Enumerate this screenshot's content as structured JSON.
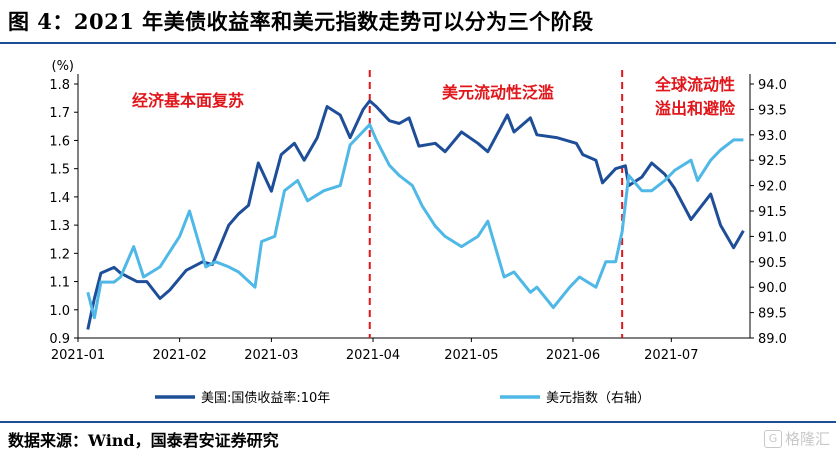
{
  "title": "图 4：2021 年美债收益率和美元指数走势可以分为三个阶段",
  "source": "数据来源：Wind，国泰君安证券研究",
  "watermark": "格隆汇",
  "watermark_icon": "G",
  "chart_data": {
    "type": "line",
    "xlabel": "",
    "y_unit": "(%)",
    "x_ticks": [
      "2021-01",
      "2021-02",
      "2021-03",
      "2021-04",
      "2021-05",
      "2021-06",
      "2021-07"
    ],
    "x_range": [
      "2021-01-01",
      "2021-07-25"
    ],
    "ylim_left": [
      0.9,
      1.8
    ],
    "ylim_right": [
      89.0,
      94.0
    ],
    "y_ticks_left": [
      "0.9",
      "1.0",
      "1.1",
      "1.2",
      "1.3",
      "1.4",
      "1.5",
      "1.6",
      "1.7",
      "1.8"
    ],
    "y_ticks_right": [
      "89.0",
      "89.5",
      "90.0",
      "90.5",
      "91.0",
      "91.5",
      "92.0",
      "92.5",
      "93.0",
      "93.5",
      "94.0"
    ],
    "grid": false,
    "legend_position": "bottom",
    "series": [
      {
        "name": "美国:国债收益率:10年",
        "axis": "left",
        "color": "#1f4e99",
        "points": [
          [
            "2021-01-04",
            0.93
          ],
          [
            "2021-01-06",
            1.04
          ],
          [
            "2021-01-08",
            1.13
          ],
          [
            "2021-01-12",
            1.15
          ],
          [
            "2021-01-14",
            1.13
          ],
          [
            "2021-01-19",
            1.1
          ],
          [
            "2021-01-22",
            1.1
          ],
          [
            "2021-01-26",
            1.04
          ],
          [
            "2021-01-29",
            1.07
          ],
          [
            "2021-02-03",
            1.14
          ],
          [
            "2021-02-08",
            1.17
          ],
          [
            "2021-02-11",
            1.16
          ],
          [
            "2021-02-16",
            1.3
          ],
          [
            "2021-02-19",
            1.34
          ],
          [
            "2021-02-22",
            1.37
          ],
          [
            "2021-02-25",
            1.52
          ],
          [
            "2021-03-01",
            1.42
          ],
          [
            "2021-03-04",
            1.55
          ],
          [
            "2021-03-08",
            1.59
          ],
          [
            "2021-03-11",
            1.53
          ],
          [
            "2021-03-15",
            1.61
          ],
          [
            "2021-03-18",
            1.72
          ],
          [
            "2021-03-22",
            1.69
          ],
          [
            "2021-03-25",
            1.61
          ],
          [
            "2021-03-29",
            1.71
          ],
          [
            "2021-03-31",
            1.74
          ],
          [
            "2021-04-02",
            1.72
          ],
          [
            "2021-04-06",
            1.67
          ],
          [
            "2021-04-09",
            1.66
          ],
          [
            "2021-04-12",
            1.68
          ],
          [
            "2021-04-15",
            1.58
          ],
          [
            "2021-04-20",
            1.59
          ],
          [
            "2021-04-23",
            1.56
          ],
          [
            "2021-04-28",
            1.63
          ],
          [
            "2021-05-03",
            1.59
          ],
          [
            "2021-05-06",
            1.56
          ],
          [
            "2021-05-12",
            1.69
          ],
          [
            "2021-05-14",
            1.63
          ],
          [
            "2021-05-19",
            1.68
          ],
          [
            "2021-05-21",
            1.62
          ],
          [
            "2021-05-27",
            1.61
          ],
          [
            "2021-06-02",
            1.59
          ],
          [
            "2021-06-04",
            1.55
          ],
          [
            "2021-06-08",
            1.53
          ],
          [
            "2021-06-10",
            1.45
          ],
          [
            "2021-06-14",
            1.5
          ],
          [
            "2021-06-17",
            1.51
          ],
          [
            "2021-06-18",
            1.44
          ],
          [
            "2021-06-22",
            1.47
          ],
          [
            "2021-06-25",
            1.52
          ],
          [
            "2021-06-29",
            1.48
          ],
          [
            "2021-07-02",
            1.43
          ],
          [
            "2021-07-07",
            1.32
          ],
          [
            "2021-07-13",
            1.41
          ],
          [
            "2021-07-16",
            1.3
          ],
          [
            "2021-07-20",
            1.22
          ],
          [
            "2021-07-23",
            1.28
          ]
        ]
      },
      {
        "name": "美元指数（右轴）",
        "axis": "right",
        "color": "#4fb8e6",
        "points": [
          [
            "2021-01-04",
            89.9
          ],
          [
            "2021-01-06",
            89.4
          ],
          [
            "2021-01-08",
            90.1
          ],
          [
            "2021-01-12",
            90.1
          ],
          [
            "2021-01-14",
            90.2
          ],
          [
            "2021-01-18",
            90.8
          ],
          [
            "2021-01-21",
            90.2
          ],
          [
            "2021-01-26",
            90.4
          ],
          [
            "2021-02-01",
            91.0
          ],
          [
            "2021-02-04",
            91.5
          ],
          [
            "2021-02-09",
            90.4
          ],
          [
            "2021-02-12",
            90.5
          ],
          [
            "2021-02-16",
            90.4
          ],
          [
            "2021-02-19",
            90.3
          ],
          [
            "2021-02-24",
            90.0
          ],
          [
            "2021-02-26",
            90.9
          ],
          [
            "2021-03-02",
            91.0
          ],
          [
            "2021-03-05",
            91.9
          ],
          [
            "2021-03-09",
            92.1
          ],
          [
            "2021-03-12",
            91.7
          ],
          [
            "2021-03-17",
            91.9
          ],
          [
            "2021-03-22",
            92.0
          ],
          [
            "2021-03-25",
            92.8
          ],
          [
            "2021-03-31",
            93.2
          ],
          [
            "2021-04-02",
            92.9
          ],
          [
            "2021-04-06",
            92.4
          ],
          [
            "2021-04-09",
            92.2
          ],
          [
            "2021-04-13",
            92.0
          ],
          [
            "2021-04-16",
            91.6
          ],
          [
            "2021-04-20",
            91.2
          ],
          [
            "2021-04-23",
            91.0
          ],
          [
            "2021-04-28",
            90.8
          ],
          [
            "2021-05-03",
            91.0
          ],
          [
            "2021-05-06",
            91.3
          ],
          [
            "2021-05-11",
            90.2
          ],
          [
            "2021-05-14",
            90.3
          ],
          [
            "2021-05-19",
            89.9
          ],
          [
            "2021-05-21",
            90.0
          ],
          [
            "2021-05-26",
            89.6
          ],
          [
            "2021-05-31",
            90.0
          ],
          [
            "2021-06-03",
            90.2
          ],
          [
            "2021-06-08",
            90.0
          ],
          [
            "2021-06-11",
            90.5
          ],
          [
            "2021-06-14",
            90.5
          ],
          [
            "2021-06-16",
            91.1
          ],
          [
            "2021-06-18",
            92.2
          ],
          [
            "2021-06-22",
            91.9
          ],
          [
            "2021-06-25",
            91.9
          ],
          [
            "2021-06-29",
            92.1
          ],
          [
            "2021-07-02",
            92.3
          ],
          [
            "2021-07-07",
            92.5
          ],
          [
            "2021-07-09",
            92.1
          ],
          [
            "2021-07-13",
            92.5
          ],
          [
            "2021-07-16",
            92.7
          ],
          [
            "2021-07-20",
            92.9
          ],
          [
            "2021-07-23",
            92.9
          ]
        ]
      }
    ],
    "dividers": [
      "2021-03-31",
      "2021-06-16"
    ],
    "annotations": [
      {
        "lines": [
          "经济基本面复苏"
        ]
      },
      {
        "lines": [
          "美元流动性泛滥"
        ]
      },
      {
        "lines": [
          "全球流动性",
          "溢出和避险"
        ]
      }
    ]
  }
}
